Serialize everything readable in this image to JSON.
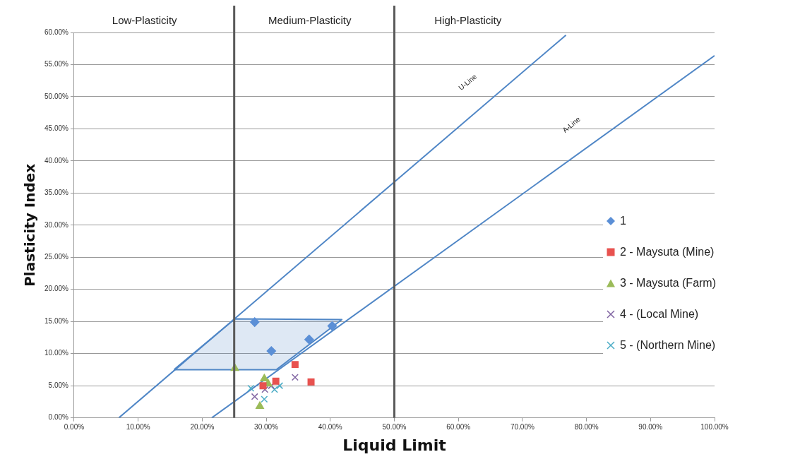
{
  "chart_data": {
    "type": "scatter",
    "xlabel": "Liquid Limit",
    "ylabel": "Plasticity Index",
    "xlim": [
      0,
      100
    ],
    "ylim": [
      0,
      60
    ],
    "xticks": [
      {
        "value": 0,
        "label": "0.00%"
      },
      {
        "value": 10,
        "label": "10.00%"
      },
      {
        "value": 20,
        "label": "20.00%"
      },
      {
        "value": 30,
        "label": "30.00%"
      },
      {
        "value": 40,
        "label": "40.00%"
      },
      {
        "value": 50,
        "label": "50.00%"
      },
      {
        "value": 60,
        "label": "60.00%"
      },
      {
        "value": 70,
        "label": "70.00%"
      },
      {
        "value": 80,
        "label": "80.00%"
      },
      {
        "value": 90,
        "label": "90.00%"
      },
      {
        "value": 100,
        "label": "100.00%"
      }
    ],
    "yticks": [
      {
        "value": 0,
        "label": "0.00%"
      },
      {
        "value": 5,
        "label": "5.00%"
      },
      {
        "value": 10,
        "label": "10.00%"
      },
      {
        "value": 15,
        "label": "15.00%"
      },
      {
        "value": 20,
        "label": "20.00%"
      },
      {
        "value": 25,
        "label": "25.00%"
      },
      {
        "value": 30,
        "label": "30.00%"
      },
      {
        "value": 35,
        "label": "35.00%"
      },
      {
        "value": 40,
        "label": "40.00%"
      },
      {
        "value": 45,
        "label": "45.00%"
      },
      {
        "value": 50,
        "label": "50.00%"
      },
      {
        "value": 55,
        "label": "55.00%"
      },
      {
        "value": 60,
        "label": "60.00%"
      }
    ],
    "grid": "y",
    "legend": "right",
    "series": [
      {
        "type": "area",
        "color": "#4f86c6",
        "marker": "none",
        "x": [
          15.6,
          25.1,
          41.8,
          31.6,
          15.6
        ],
        "values": [
          7.5,
          15.4,
          15.3,
          7.5,
          7.5
        ]
      },
      {
        "type": "line",
        "color": "#4f86c6",
        "marker": "none",
        "x": [
          7,
          76.8
        ],
        "values": [
          0,
          59.6
        ]
      },
      {
        "type": "line",
        "color": "#4f86c6",
        "marker": "none",
        "x": [
          21.5,
          100
        ],
        "values": [
          0,
          56.4
        ]
      },
      {
        "name": "1",
        "type": "scatter",
        "color": "#5b8fd6",
        "marker": "diamond",
        "x": [
          28.2,
          30.8,
          36.7,
          40.3
        ],
        "values": [
          14.9,
          10.4,
          12.2,
          14.3
        ]
      },
      {
        "name": "2 - Maysuta (Mine)",
        "type": "scatter",
        "color": "#e8524f",
        "marker": "square",
        "x": [
          34.5,
          37.0,
          31.5,
          29.5
        ],
        "values": [
          8.3,
          5.6,
          5.7,
          5.0
        ]
      },
      {
        "name": "3 - Maysuta (Farm)",
        "type": "scatter",
        "color": "#9bbb59",
        "marker": "triangle",
        "x": [
          25.1,
          29.0,
          29.7,
          30.3
        ],
        "values": [
          7.7,
          1.8,
          6.1,
          5.3
        ]
      },
      {
        "name": "4 - (Local Mine)",
        "type": "scatter",
        "color": "#8064a2",
        "marker": "cross",
        "x": [
          34.5,
          28.2,
          30.8,
          29.8
        ],
        "values": [
          6.3,
          3.3,
          5.0,
          4.4
        ]
      },
      {
        "name": "5 - (Northern Mine)",
        "type": "scatter",
        "color": "#4bacc6",
        "marker": "cross",
        "x": [
          27.6,
          29.7,
          32.1,
          31.3
        ],
        "values": [
          4.6,
          2.9,
          5.0,
          4.4
        ]
      }
    ],
    "ref_lines": [
      {
        "axis": "x",
        "value": 25,
        "color": "#595959"
      },
      {
        "axis": "x",
        "value": 50,
        "color": "#595959"
      }
    ],
    "annotations": [
      "Low-Plasticity",
      "Medium-Plasticity",
      "High-Plasticity",
      "U-Line",
      "A-Line"
    ]
  }
}
